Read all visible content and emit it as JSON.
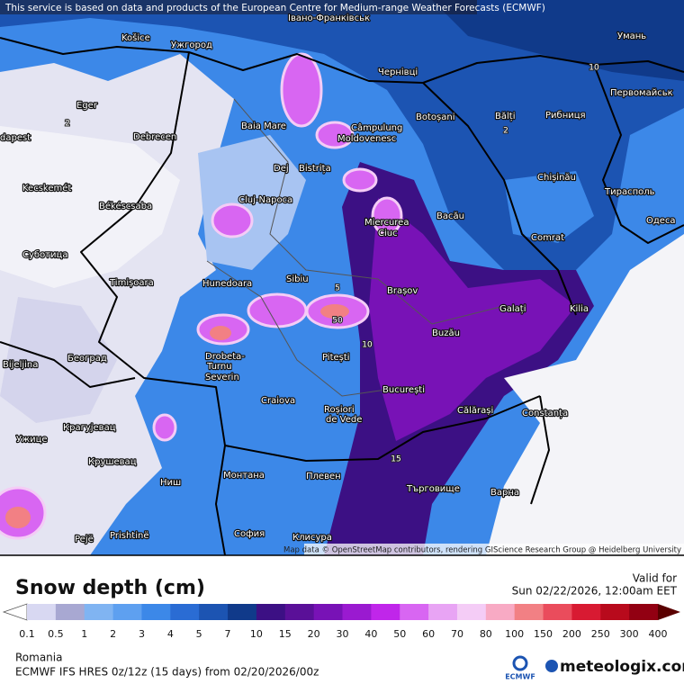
{
  "notice": "This service is based on data and products of the European Centre for Medium-range Weather Forecasts (ECMWF)",
  "attribution": "Map data © OpenStreetMap contributors, rendering GIScience Research Group @ Heidelberg University",
  "cities": [
    "Košice",
    "Ужгород",
    "Івано-Франківськ",
    "Умань",
    "Eger",
    "Baia Mare",
    "Чернівці",
    "Первомайськ",
    "Botoșani",
    "Bălți",
    "Рибниця",
    "Câmpulung",
    "Moldovenesc",
    "dapest",
    "Debrecen",
    "Dej",
    "Bistrița",
    "Chișinău",
    "Kecskemét",
    "Тирасполь",
    "Cluj-Napoca",
    "Békéscsaba",
    "Miercurea",
    "Ciuc",
    "Bacău",
    "Одеса",
    "Comrat",
    "Суботица",
    "Timișoara",
    "Hunedoara",
    "Sibiu",
    "Brașov",
    "Galați",
    "Kilia",
    "Buzău",
    "Bijeljina",
    "Београд",
    "Drobeta-",
    "Turnu",
    "Severin",
    "Pitești",
    "București",
    "Craiova",
    "Roșiori",
    "de Vede",
    "Călărași",
    "Constanța",
    "Крагујевац",
    "Ужице",
    "Крушевац",
    "Монтана",
    "Плевен",
    "Ниш",
    "Търговище",
    "Варна",
    "Pejë",
    "Prishtinë",
    "София",
    "Клисура"
  ],
  "contour_labels": [
    "2",
    "10",
    "50",
    "2",
    "5",
    "15",
    "10"
  ],
  "legend": {
    "title": "Snow depth (cm)",
    "valid_label": "Valid for",
    "valid_time": "Sun 02/22/2026, 12:00am EET",
    "ticks": [
      0.1,
      0.5,
      1,
      2,
      3,
      4,
      5,
      7,
      10,
      15,
      20,
      30,
      40,
      50,
      60,
      70,
      80,
      100,
      150,
      200,
      250,
      300,
      400
    ],
    "colors": [
      "#ffffff",
      "#d8d8f2",
      "#a8a8d2",
      "#80b4f2",
      "#5ea0f0",
      "#3c88e8",
      "#2a6cd4",
      "#1c54b2",
      "#103a8a",
      "#3c1084",
      "#5a1098",
      "#7812b6",
      "#9a1ad0",
      "#c026ea",
      "#d866f2",
      "#e8a4f4",
      "#f4ccf6",
      "#f8aac4",
      "#f28084",
      "#ea4c5c",
      "#d81a32",
      "#b80a1c",
      "#920012",
      "#5a0000"
    ]
  },
  "footer": {
    "region": "Romania",
    "model": "ECMWF IFS HRES 0z/12z (15 days) from  02/20/2026/00z",
    "ecmwf": "ECMWF",
    "brand": "meteologix.com"
  }
}
